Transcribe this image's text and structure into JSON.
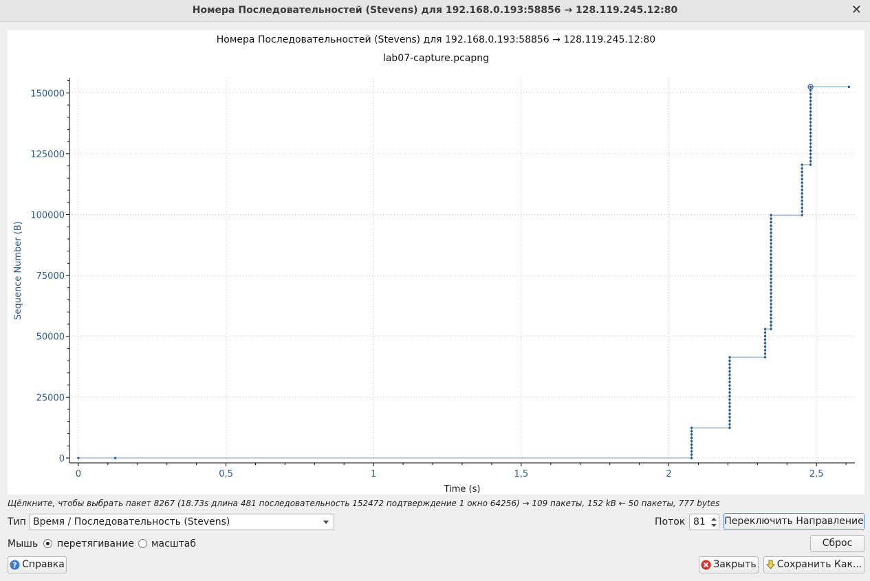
{
  "window": {
    "title": "Номера Последовательностей (Stevens) для 192.168.0.193:58856 → 128.119.245.12:80"
  },
  "chart_data": {
    "type": "scatter",
    "title": "Номера Последовательностей (Stevens) для 192.168.0.193:58856 → 128.119.245.12:80",
    "subtitle": "lab07-capture.pcapng",
    "xlabel": "Time (s)",
    "ylabel": "Sequence Number (B)",
    "xlim": [
      -0.03,
      2.63
    ],
    "ylim": [
      -2000,
      156000
    ],
    "x_ticks": [
      0,
      0.5,
      1,
      1.5,
      2,
      2.5
    ],
    "x_tick_labels": [
      "0",
      "0,5",
      "1",
      "1,5",
      "2",
      "2,5"
    ],
    "y_ticks": [
      0,
      25000,
      50000,
      75000,
      100000,
      125000,
      150000
    ],
    "y_tick_labels": [
      "0",
      "25000",
      "50000",
      "75000",
      "100000",
      "125000",
      "150000"
    ],
    "grid": true,
    "bursts": [
      {
        "t": 0.0,
        "seq_start": 0,
        "seq_end": 0
      },
      {
        "t": 0.125,
        "seq_start": 1,
        "seq_end": 1
      },
      {
        "t": 2.077,
        "seq_start": 1,
        "seq_end": 12400
      },
      {
        "t": 2.206,
        "seq_start": 12400,
        "seq_end": 41400
      },
      {
        "t": 2.326,
        "seq_start": 41400,
        "seq_end": 53000
      },
      {
        "t": 2.346,
        "seq_start": 53000,
        "seq_end": 99800
      },
      {
        "t": 2.451,
        "seq_start": 99800,
        "seq_end": 120500
      },
      {
        "t": 2.48,
        "seq_start": 120500,
        "seq_end": 152472
      },
      {
        "t": 2.61,
        "seq_start": 152472,
        "seq_end": 152472
      }
    ],
    "selected_point": {
      "t": 2.48,
      "seq": 152472
    }
  },
  "status": {
    "text": "Щёлкните, чтобы выбрать пакет 8267 (18.73s длина 481 последовательность 152472 подтверждение 1 окно 64256) → 109 пакеты, 152 kB ← 50 пакеты, 777 bytes"
  },
  "controls": {
    "type_label": "Тип",
    "type_value": "Время / Последовательность (Stevens)",
    "stream_label": "Поток",
    "stream_value": "81",
    "switch_direction": "Переключить Направление",
    "mouse_label": "Мышь",
    "drag_label": "перетягивание",
    "zoom_label": "масштаб",
    "reset": "Сброс",
    "help": "Справка",
    "close": "Закрыть",
    "save_as": "Сохранить Как..."
  },
  "colors": {
    "series": "#2b5a8a",
    "axis_text": "#2b5a8a",
    "grid": "#c8c8c8",
    "line": "#7a9cc0"
  },
  "icons": {
    "close": "close-icon",
    "help": "help-icon",
    "cancel": "cancel-icon",
    "save": "save-icon"
  }
}
